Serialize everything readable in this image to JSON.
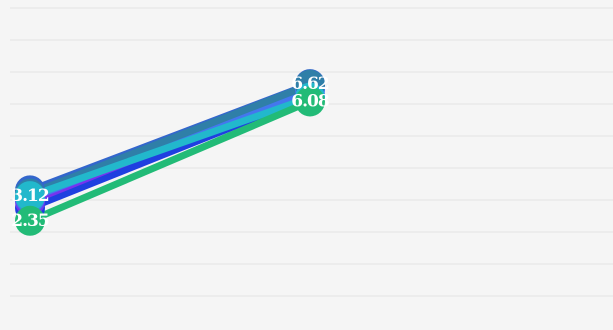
{
  "chart_data": {
    "type": "line",
    "title": "",
    "xlabel": "",
    "ylabel": "",
    "x": [
      0,
      1
    ],
    "ylim": [
      0,
      9
    ],
    "grid": true,
    "legend": "none",
    "series": [
      {
        "color": "#1f3fe0",
        "values": [
          2.75,
          6.25
        ]
      },
      {
        "color": "#3366cc",
        "values": [
          3.3,
          6.62
        ]
      },
      {
        "color": "#7733ee",
        "values": [
          2.95,
          6.5
        ]
      },
      {
        "color": "#4477ee",
        "values": [
          3.05,
          6.45
        ]
      },
      {
        "color": "#2f7fa8",
        "values": [
          3.2,
          6.6
        ]
      },
      {
        "color": "#22b8cc",
        "values": [
          3.12,
          6.2
        ]
      },
      {
        "color": "#22bb77",
        "values": [
          2.35,
          6.08
        ]
      }
    ],
    "data_labels": [
      {
        "series": 1,
        "index": 1,
        "text": "6.62"
      },
      {
        "series": 5,
        "index": 0,
        "text": "3.12"
      },
      {
        "series": 6,
        "index": 0,
        "text": "2.35"
      },
      {
        "series": 6,
        "index": 1,
        "text": "6.08"
      }
    ]
  }
}
